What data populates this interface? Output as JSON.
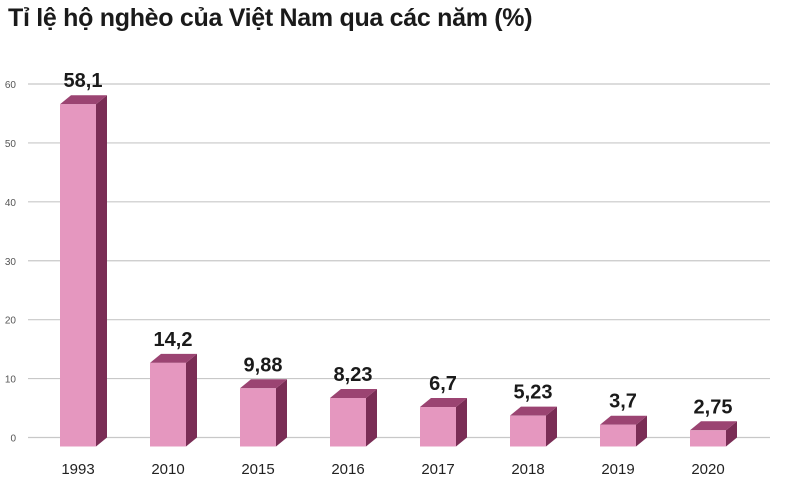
{
  "chart_data": {
    "type": "bar",
    "title": "Tỉ lệ hộ nghèo của Việt Nam qua các năm (%)",
    "categories": [
      "1993",
      "2010",
      "2015",
      "2016",
      "2017",
      "2018",
      "2019",
      "2020"
    ],
    "values": [
      58.1,
      14.2,
      9.88,
      8.23,
      6.7,
      5.23,
      3.7,
      2.75
    ],
    "value_labels": [
      "58,1",
      "14,2",
      "9,88",
      "8,23",
      "6,7",
      "5,23",
      "3,7",
      "2,75"
    ],
    "yticks": [
      0,
      10,
      20,
      30,
      40,
      50,
      60
    ],
    "ylim": [
      0,
      60
    ],
    "grid": true,
    "colors": {
      "bar_front": "#e597bf",
      "bar_side": "#7a2d55",
      "bar_top": "#9b4472"
    }
  }
}
